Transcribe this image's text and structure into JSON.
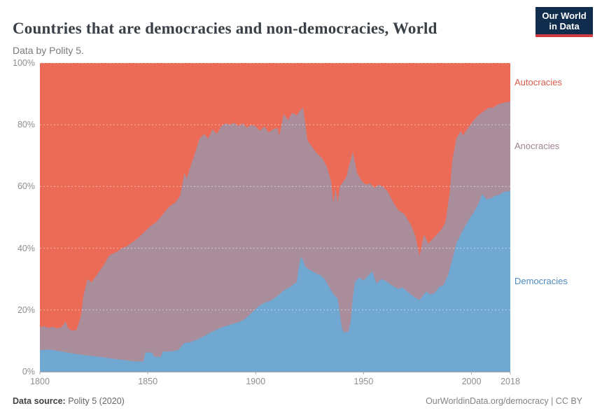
{
  "header": {
    "title": "Countries that are democracies and non-democracies, World",
    "subtitle": "Data by Polity 5.",
    "logo": {
      "line1": "Our World",
      "line2": "in Data",
      "bg_color": "#102D4E",
      "stripe_color": "#D23B3F"
    }
  },
  "footer": {
    "source_label": "Data source:",
    "source_value": " Polity 5 (2020)",
    "credit": "OurWorldinData.org/democracy | CC BY"
  },
  "chart_data": {
    "type": "area",
    "stacked_to_100_percent": true,
    "title": "Countries that are democracies and non-democracies, World",
    "xlabel": "",
    "ylabel": "",
    "xlim": [
      1800,
      2018
    ],
    "ylim": [
      0,
      100
    ],
    "x_ticks": [
      "1800",
      "1850",
      "1900",
      "1950",
      "2000",
      "2018"
    ],
    "y_ticks": [
      "0%",
      "20%",
      "40%",
      "60%",
      "80%",
      "100%"
    ],
    "grid": "horizontal-dashed",
    "legend_position": "right",
    "note": "Each series lists keypoints [year, cumulative % of countries from bottom of stack]; band value = own top minus previous series top; values estimated from chart pixels",
    "series": [
      {
        "name": "Democracies",
        "color": "#70A8D2",
        "label_color": "#4E8ABF",
        "band": "bottom",
        "cumulative_top_keypoints": [
          [
            1800,
            7
          ],
          [
            1804,
            7.2
          ],
          [
            1808,
            6.8
          ],
          [
            1812,
            6.3
          ],
          [
            1816,
            5.8
          ],
          [
            1820,
            5.4
          ],
          [
            1825,
            5
          ],
          [
            1830,
            4.6
          ],
          [
            1835,
            4.1
          ],
          [
            1840,
            3.7
          ],
          [
            1844,
            3.3
          ],
          [
            1848,
            3.3
          ],
          [
            1849,
            6.3
          ],
          [
            1852,
            6.2
          ],
          [
            1853,
            4.8
          ],
          [
            1856,
            4.8
          ],
          [
            1857,
            6.5
          ],
          [
            1861,
            6.6
          ],
          [
            1864,
            7
          ],
          [
            1867,
            9.3
          ],
          [
            1870,
            9.6
          ],
          [
            1873,
            10.5
          ],
          [
            1876,
            11.5
          ],
          [
            1880,
            13
          ],
          [
            1884,
            14.3
          ],
          [
            1888,
            15.2
          ],
          [
            1892,
            16
          ],
          [
            1895,
            17
          ],
          [
            1898,
            19
          ],
          [
            1901,
            21
          ],
          [
            1904,
            22.3
          ],
          [
            1907,
            23
          ],
          [
            1910,
            24.5
          ],
          [
            1913,
            26.3
          ],
          [
            1916,
            27.5
          ],
          [
            1919,
            29
          ],
          [
            1920,
            34
          ],
          [
            1921,
            37.3
          ],
          [
            1922,
            36
          ],
          [
            1923,
            34
          ],
          [
            1925,
            33
          ],
          [
            1928,
            31.8
          ],
          [
            1930,
            31.3
          ],
          [
            1932,
            30
          ],
          [
            1934,
            27.5
          ],
          [
            1936,
            25.2
          ],
          [
            1938,
            23.6
          ],
          [
            1940,
            13.8
          ],
          [
            1941,
            12.7
          ],
          [
            1943,
            13
          ],
          [
            1944,
            16
          ],
          [
            1945,
            24
          ],
          [
            1946,
            29
          ],
          [
            1948,
            30.5
          ],
          [
            1950,
            29.5
          ],
          [
            1952,
            31
          ],
          [
            1954,
            32.5
          ],
          [
            1956,
            28.5
          ],
          [
            1958,
            30
          ],
          [
            1960,
            29.5
          ],
          [
            1963,
            28
          ],
          [
            1966,
            26.8
          ],
          [
            1968,
            27.3
          ],
          [
            1971,
            25.5
          ],
          [
            1974,
            24
          ],
          [
            1976,
            23.2
          ],
          [
            1979,
            26
          ],
          [
            1981,
            25
          ],
          [
            1983,
            25.5
          ],
          [
            1985,
            27.5
          ],
          [
            1987,
            28
          ],
          [
            1989,
            31
          ],
          [
            1991,
            36
          ],
          [
            1993,
            41.5
          ],
          [
            1995,
            44.5
          ],
          [
            1997,
            47
          ],
          [
            1999,
            49.5
          ],
          [
            2001,
            51.5
          ],
          [
            2003,
            54
          ],
          [
            2005,
            57.5
          ],
          [
            2007,
            55.8
          ],
          [
            2009,
            56.2
          ],
          [
            2011,
            57
          ],
          [
            2013,
            57.3
          ],
          [
            2015,
            58.3
          ],
          [
            2018,
            58.5
          ]
        ]
      },
      {
        "name": "Anocracies",
        "color": "#AA8D9B",
        "label_color": "#9D8494",
        "band": "middle",
        "cumulative_top_keypoints": [
          [
            1800,
            14.3
          ],
          [
            1802,
            14.8
          ],
          [
            1804,
            14.2
          ],
          [
            1806,
            14.6
          ],
          [
            1808,
            14
          ],
          [
            1810,
            14.4
          ],
          [
            1812,
            16.3
          ],
          [
            1813,
            14.2
          ],
          [
            1815,
            13.2
          ],
          [
            1817,
            13.6
          ],
          [
            1819,
            18
          ],
          [
            1820,
            24
          ],
          [
            1821,
            27
          ],
          [
            1822,
            30
          ],
          [
            1824,
            29
          ],
          [
            1826,
            31
          ],
          [
            1828,
            33
          ],
          [
            1830,
            35
          ],
          [
            1832,
            37.6
          ],
          [
            1834,
            38.3
          ],
          [
            1836,
            39
          ],
          [
            1838,
            40
          ],
          [
            1840,
            40.6
          ],
          [
            1842,
            41.5
          ],
          [
            1845,
            43
          ],
          [
            1848,
            45
          ],
          [
            1851,
            47
          ],
          [
            1854,
            48.5
          ],
          [
            1857,
            51
          ],
          [
            1860,
            53.5
          ],
          [
            1863,
            55
          ],
          [
            1865,
            57
          ],
          [
            1867,
            64.5
          ],
          [
            1868,
            62.5
          ],
          [
            1870,
            67
          ],
          [
            1872,
            71
          ],
          [
            1874,
            75.5
          ],
          [
            1876,
            77
          ],
          [
            1878,
            75.5
          ],
          [
            1880,
            78.5
          ],
          [
            1882,
            77
          ],
          [
            1884,
            79.5
          ],
          [
            1886,
            80.5
          ],
          [
            1888,
            80
          ],
          [
            1890,
            80.7
          ],
          [
            1892,
            79.5
          ],
          [
            1894,
            80.5
          ],
          [
            1896,
            79
          ],
          [
            1898,
            80
          ],
          [
            1900,
            79.5
          ],
          [
            1902,
            78
          ],
          [
            1904,
            79.5
          ],
          [
            1906,
            77.5
          ],
          [
            1908,
            78.5
          ],
          [
            1910,
            79
          ],
          [
            1911,
            76.5
          ],
          [
            1913,
            83.5
          ],
          [
            1915,
            81.5
          ],
          [
            1917,
            84
          ],
          [
            1919,
            83
          ],
          [
            1921,
            85
          ],
          [
            1922,
            85.5
          ],
          [
            1924,
            75
          ],
          [
            1926,
            73
          ],
          [
            1928,
            71
          ],
          [
            1931,
            69
          ],
          [
            1933,
            66.4
          ],
          [
            1935,
            61.5
          ],
          [
            1936,
            54.6
          ],
          [
            1937,
            59.5
          ],
          [
            1938,
            55
          ],
          [
            1939,
            60
          ],
          [
            1940,
            61
          ],
          [
            1942,
            63
          ],
          [
            1943,
            66
          ],
          [
            1945,
            71.2
          ],
          [
            1947,
            64.4
          ],
          [
            1949,
            61.9
          ],
          [
            1951,
            60.6
          ],
          [
            1953,
            61
          ],
          [
            1955,
            59.5
          ],
          [
            1957,
            60.6
          ],
          [
            1959,
            60
          ],
          [
            1961,
            58.5
          ],
          [
            1964,
            54.6
          ],
          [
            1966,
            52.4
          ],
          [
            1969,
            51
          ],
          [
            1972,
            47.5
          ],
          [
            1974,
            44
          ],
          [
            1976,
            37.5
          ],
          [
            1978,
            44.5
          ],
          [
            1980,
            41.5
          ],
          [
            1982,
            43
          ],
          [
            1984,
            44.5
          ],
          [
            1986,
            46
          ],
          [
            1988,
            48.5
          ],
          [
            1990,
            58.5
          ],
          [
            1991,
            68
          ],
          [
            1993,
            75.5
          ],
          [
            1995,
            78
          ],
          [
            1996,
            76.5
          ],
          [
            1998,
            78.5
          ],
          [
            2000,
            80.5
          ],
          [
            2003,
            83
          ],
          [
            2006,
            84.5
          ],
          [
            2008,
            85.5
          ],
          [
            2010,
            85.5
          ],
          [
            2012,
            86.5
          ],
          [
            2014,
            87
          ],
          [
            2016,
            87.3
          ],
          [
            2018,
            87.5
          ]
        ]
      },
      {
        "name": "Autocracies",
        "color": "#EC6B57",
        "label_color": "#DB5B4B",
        "band": "top",
        "cumulative_top_keypoints": [
          [
            1800,
            100
          ],
          [
            2018,
            100
          ]
        ]
      }
    ]
  }
}
